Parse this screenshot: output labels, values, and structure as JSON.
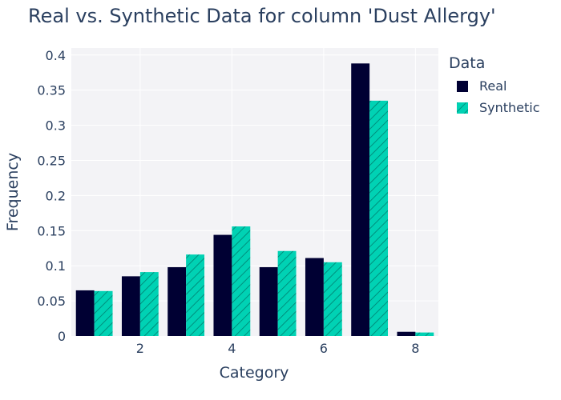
{
  "chart_data": {
    "type": "bar",
    "title": "Real vs. Synthetic Data for column 'Dust Allergy'",
    "xlabel": "Category",
    "ylabel": "Frequency",
    "categories": [
      1,
      2,
      3,
      4,
      5,
      6,
      7,
      8
    ],
    "x_ticks": [
      2,
      4,
      6,
      8
    ],
    "y_ticks": [
      0,
      0.05,
      0.1,
      0.15,
      0.2,
      0.25,
      0.3,
      0.35,
      0.4
    ],
    "y_tick_labels": [
      "0",
      "0.05",
      "0.1",
      "0.15",
      "0.2",
      "0.25",
      "0.3",
      "0.35",
      "0.4"
    ],
    "xlim": [
      0.5,
      8.5
    ],
    "ylim": [
      0,
      0.41
    ],
    "grid": true,
    "legend_title": "Data",
    "legend_position": "right",
    "series": [
      {
        "name": "Real",
        "color": "#000033",
        "pattern": "solid",
        "values": [
          0.065,
          0.085,
          0.098,
          0.144,
          0.098,
          0.111,
          0.388,
          0.006
        ]
      },
      {
        "name": "Synthetic",
        "color": "#00d2b4",
        "pattern": "diagonal-hatch",
        "values": [
          0.064,
          0.091,
          0.116,
          0.156,
          0.121,
          0.105,
          0.335,
          0.005
        ]
      }
    ]
  }
}
